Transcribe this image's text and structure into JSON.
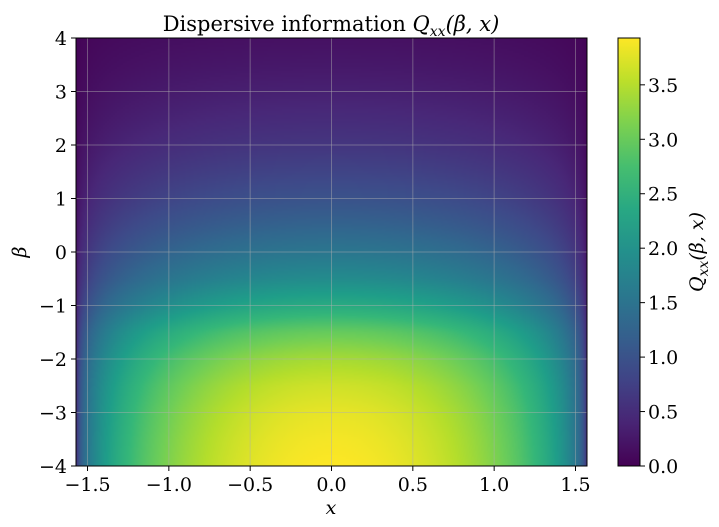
{
  "chart_data": {
    "type": "heatmap",
    "title_prefix": "Dispersive information",
    "quantity_symbol": "Q",
    "quantity_subscript": "xx",
    "quantity_args": "(β, x)",
    "xlabel": "x",
    "ylabel": "β",
    "colorbar_label_symbol": "Q",
    "colorbar_label_subscript": "xx",
    "colorbar_label_args": "(β, x)",
    "xlim": [
      -1.5708,
      1.5708
    ],
    "ylim": [
      -4,
      4
    ],
    "xticks": [
      "−1.5",
      "−1.0",
      "−0.5",
      "0.0",
      "0.5",
      "1.0",
      "1.5"
    ],
    "xtick_values": [
      -1.5,
      -1.0,
      -0.5,
      0.0,
      0.5,
      1.0,
      1.5
    ],
    "yticks": [
      "−4",
      "−3",
      "−2",
      "−1",
      "0",
      "1",
      "2",
      "3",
      "4"
    ],
    "ytick_values": [
      -4,
      -3,
      -2,
      -1,
      0,
      1,
      2,
      3,
      4
    ],
    "colorbar_ticks": [
      "0.0",
      "0.5",
      "1.0",
      "1.5",
      "2.0",
      "2.5",
      "3.0",
      "3.5"
    ],
    "colorbar_tick_values": [
      0.0,
      0.5,
      1.0,
      1.5,
      2.0,
      2.5,
      3.0,
      3.5
    ],
    "value_range": [
      0.0,
      3.93
    ],
    "colormap": "viridis",
    "grid": true,
    "profile_beta": [
      -4,
      -3.5,
      -3,
      -2.5,
      -2,
      -1.5,
      -1,
      -0.5,
      0,
      0.5,
      1,
      1.5,
      2,
      2.5,
      3,
      3.5,
      4
    ],
    "profile_center_value": [
      3.93,
      3.88,
      3.8,
      3.65,
      3.4,
      3.0,
      2.4,
      1.9,
      1.55,
      1.25,
      1.0,
      0.8,
      0.62,
      0.48,
      0.36,
      0.26,
      0.18
    ]
  }
}
